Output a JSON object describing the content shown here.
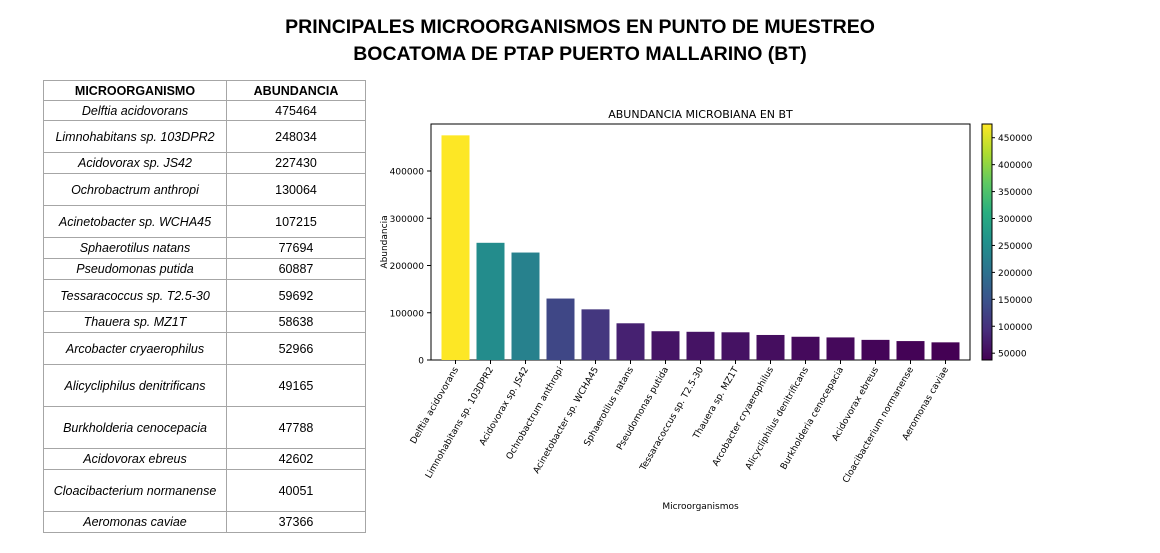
{
  "title": {
    "line1": "PRINCIPALES MICROORGANISMOS EN PUNTO DE MUESTREO",
    "line2": "BOCATOMA DE PTAP PUERTO MALLARINO (BT)"
  },
  "table": {
    "headers": [
      "MICROORGANISMO",
      "ABUNDANCIA"
    ],
    "rows": [
      {
        "name": "Delftia acidovorans",
        "value": "475464"
      },
      {
        "name": "Limnohabitans sp. 103DPR2",
        "value": "248034"
      },
      {
        "name": "Acidovorax sp. JS42",
        "value": "227430"
      },
      {
        "name": "Ochrobactrum anthropi",
        "value": "130064"
      },
      {
        "name": "Acinetobacter sp. WCHA45",
        "value": "107215"
      },
      {
        "name": "Sphaerotilus natans",
        "value": "77694"
      },
      {
        "name": "Pseudomonas putida",
        "value": "60887"
      },
      {
        "name": "Tessaracoccus sp. T2.5-30",
        "value": "59692"
      },
      {
        "name": "Thauera sp. MZ1T",
        "value": "58638"
      },
      {
        "name": "Arcobacter cryaerophilus",
        "value": "52966"
      },
      {
        "name": "Alicycliphilus denitrificans",
        "value": "49165"
      },
      {
        "name": "Burkholderia cenocepacia",
        "value": "47788"
      },
      {
        "name": "Acidovorax ebreus",
        "value": "42602"
      },
      {
        "name": "Cloacibacterium normanense",
        "value": "40051"
      },
      {
        "name": "Aeromonas caviae",
        "value": "37366"
      }
    ]
  },
  "chart_data": {
    "type": "bar",
    "title": "ABUNDANCIA MICROBIANA EN BT",
    "xlabel": "Microorganismos",
    "ylabel": "Abundancia",
    "categories": [
      "Delftia acidovorans",
      "Limnohabitans sp. 103DPR2",
      "Acidovorax sp. JS42",
      "Ochrobactrum anthropi",
      "Acinetobacter sp. WCHA45",
      "Sphaerotilus natans",
      "Pseudomonas putida",
      "Tessaracoccus sp. T2.5-30",
      "Thauera sp. MZ1T",
      "Arcobacter cryaerophilus",
      "Alicycliphilus denitrificans",
      "Burkholderia cenocepacia",
      "Acidovorax ebreus",
      "Cloacibacterium normanense",
      "Aeromonas caviae"
    ],
    "values": [
      475464,
      248034,
      227430,
      130064,
      107215,
      77694,
      60887,
      59692,
      58638,
      52966,
      49165,
      47788,
      42602,
      40051,
      37366
    ],
    "ylim": [
      0,
      500000
    ],
    "yticks": [
      0,
      100000,
      200000,
      300000,
      400000
    ],
    "colormap": "viridis",
    "colorbar_ticks": [
      50000,
      100000,
      150000,
      200000,
      250000,
      300000,
      350000,
      400000,
      450000
    ],
    "colorbar_range": [
      37366,
      475464
    ],
    "grid": false,
    "legend": "none"
  }
}
